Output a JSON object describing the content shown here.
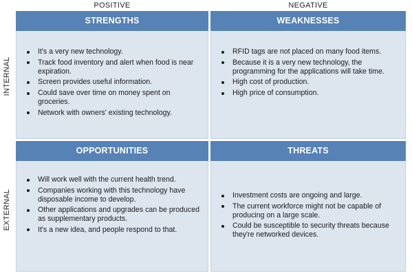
{
  "columns": {
    "positive": "POSITIVE",
    "negative": "NEGATIVE"
  },
  "rows": {
    "internal": "INTERNAL",
    "external": "EXTERNAL"
  },
  "colors": {
    "header_bg": "#5682b5",
    "header_text": "#ffffff",
    "cell_bg": "#dde5ef"
  },
  "quadrants": {
    "strengths": {
      "title": "STRENGTHS",
      "items": [
        "It's a very new technology.",
        "Track food inventory and alert when food is near expiration.",
        "Screen provides useful information.",
        "Could save over time on money spent on groceries.",
        "Network with owners' existing technology."
      ]
    },
    "weaknesses": {
      "title": "WEAKNESSES",
      "items": [
        "RFID tags are not placed on many food items.",
        "Because it is a very new technology, the programming for the applications will take time.",
        "High cost of production.",
        "High price of consumption."
      ]
    },
    "opportunities": {
      "title": "OPPORTUNITIES",
      "items": [
        "Will work well with the current health trend.",
        "Companies working with this technology have disposable income to develop.",
        "Other applications and upgrades can be produced as supplementary products.",
        "It's a new idea, and people respond to that."
      ]
    },
    "threats": {
      "title": "THREATS",
      "items": [
        "Investment costs are ongoing and large.",
        "The current workforce might not be capable of producing on a large scale.",
        "Could be susceptible to security threats because they're networked devices."
      ]
    }
  }
}
